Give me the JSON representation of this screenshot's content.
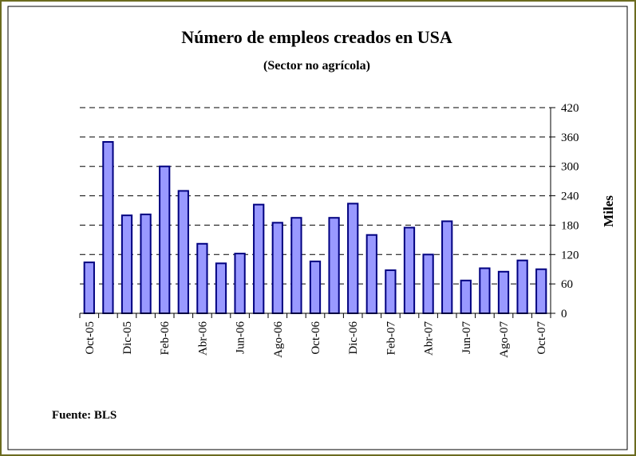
{
  "chart_data": {
    "type": "bar",
    "title": "Número de empleos creados en USA",
    "subtitle": "(Sector no agrícola)",
    "y_label": "Miles",
    "source": "Fuente: BLS",
    "categories": [
      "Oct-05",
      null,
      "Dic-05",
      null,
      "Feb-06",
      null,
      "Abr-06",
      null,
      "Jun-06",
      null,
      "Ago-06",
      null,
      "Oct-06",
      null,
      "Dic-06",
      null,
      "Feb-07",
      null,
      "Abr-07",
      null,
      "Jun-07",
      null,
      "Ago-07",
      null,
      "Oct-07"
    ],
    "values": [
      104,
      350,
      200,
      202,
      300,
      250,
      142,
      102,
      122,
      222,
      185,
      195,
      106,
      195,
      224,
      160,
      88,
      175,
      120,
      188,
      67,
      92,
      85,
      108,
      90
    ],
    "color": "#9999ff",
    "ylim": [
      0,
      420
    ],
    "yticks": [
      0,
      60,
      120,
      180,
      240,
      300,
      360,
      420
    ],
    "grid": true
  }
}
